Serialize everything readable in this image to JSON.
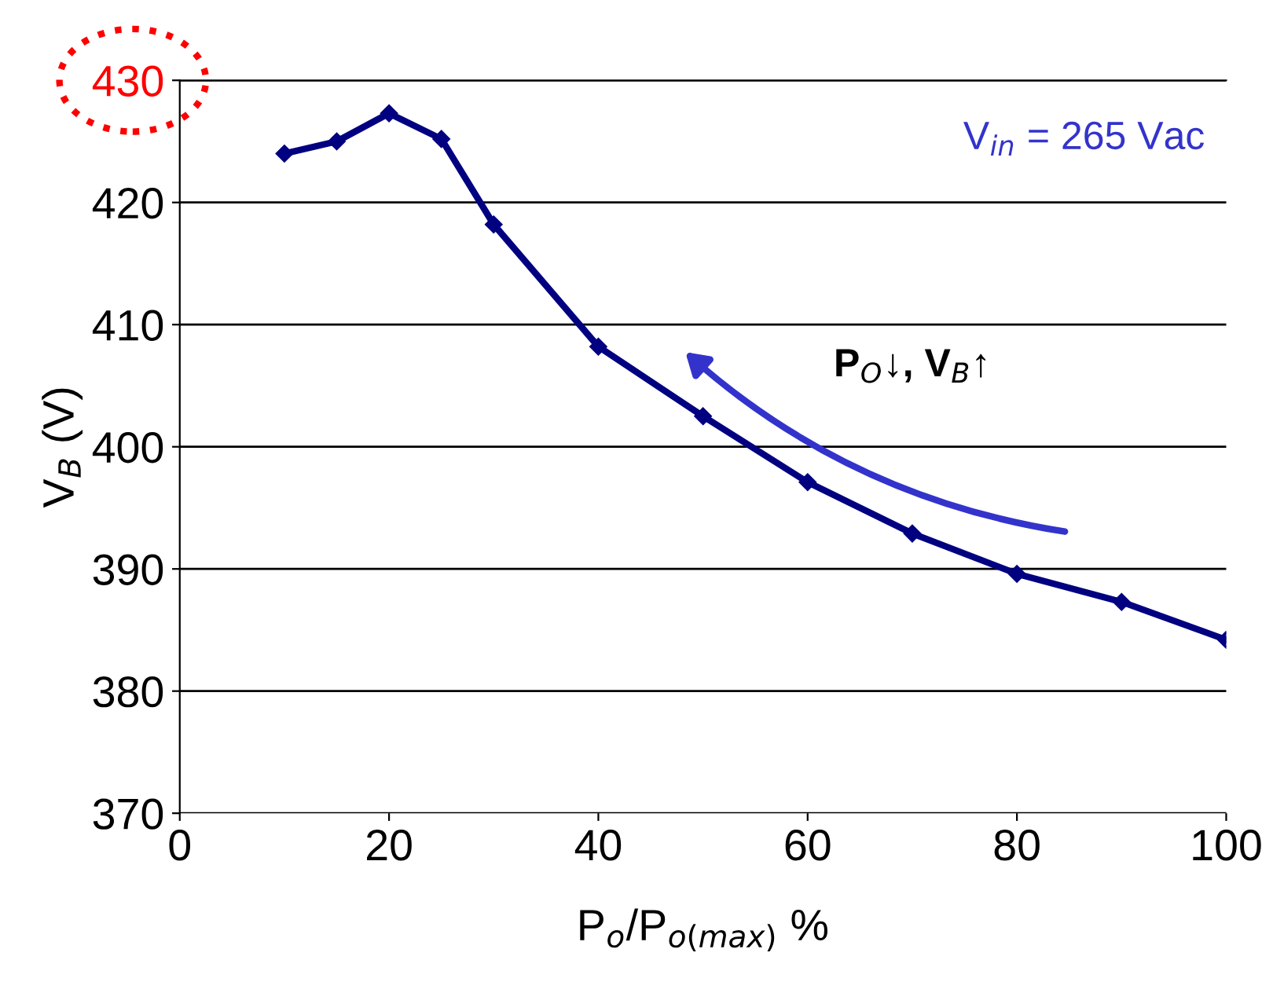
{
  "chart_data": {
    "type": "line",
    "xlabel": "P$_{o}$/P$_{o(max)}$ %",
    "ylabel": "V$_{B}$ (V)",
    "x": [
      10,
      15,
      20,
      25,
      30,
      40,
      50,
      60,
      70,
      80,
      90,
      100
    ],
    "series": [
      {
        "color": "#000080",
        "values": [
          424,
          425,
          427.3,
          425.2,
          418.2,
          408.2,
          402.5,
          397.1,
          392.9,
          389.6,
          387.3,
          384.2
        ]
      }
    ],
    "xlim": [
      0,
      100
    ],
    "xticks": [
      0,
      20,
      40,
      60,
      80,
      100
    ],
    "ylim": [
      370,
      430
    ],
    "yticks": [
      370,
      380,
      390,
      400,
      410,
      420,
      430
    ],
    "grid": "y",
    "marker": "diamond",
    "line_style": "solid",
    "legend": false,
    "annotations": [
      "V$_{in}$ = 265 Vac",
      "P$_{O}$↓, V$_{B}$↑"
    ]
  }
}
